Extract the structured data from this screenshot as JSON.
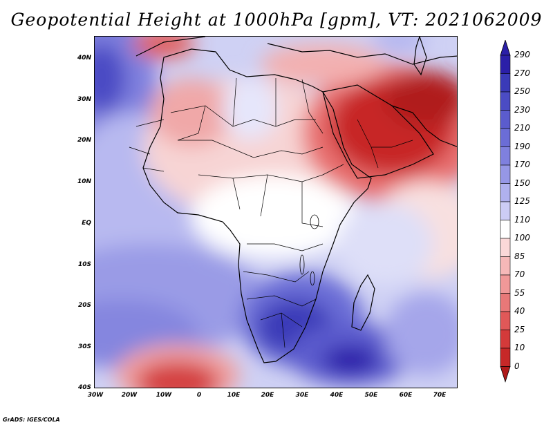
{
  "title": "Geopotential Height at 1000hPa [gpm], VT: 2021062009",
  "footer": "GrADS: IGES/COLA",
  "lat_labels": [
    "40N",
    "30N",
    "20N",
    "10N",
    "EQ",
    "10S",
    "20S",
    "30S",
    "40S"
  ],
  "lon_labels": [
    "30W",
    "20W",
    "10W",
    "0",
    "10E",
    "20E",
    "30E",
    "40E",
    "50E",
    "60E",
    "70E"
  ],
  "colorbar": {
    "labels": [
      "290",
      "270",
      "250",
      "230",
      "210",
      "190",
      "170",
      "150",
      "125",
      "110",
      "100",
      "85",
      "70",
      "55",
      "40",
      "25",
      "10",
      "0"
    ],
    "colors": [
      "#2b1fa8",
      "#3a3ab8",
      "#4b4cc4",
      "#5b5ccd",
      "#6b6dd6",
      "#7f80de",
      "#9697e6",
      "#b0b1ee",
      "#ccccf5",
      "#ffffff",
      "#fbd8d8",
      "#f6b8b8",
      "#f09898",
      "#e87878",
      "#e05858",
      "#d43a3a",
      "#c72828",
      "#b01a1a"
    ]
  }
}
